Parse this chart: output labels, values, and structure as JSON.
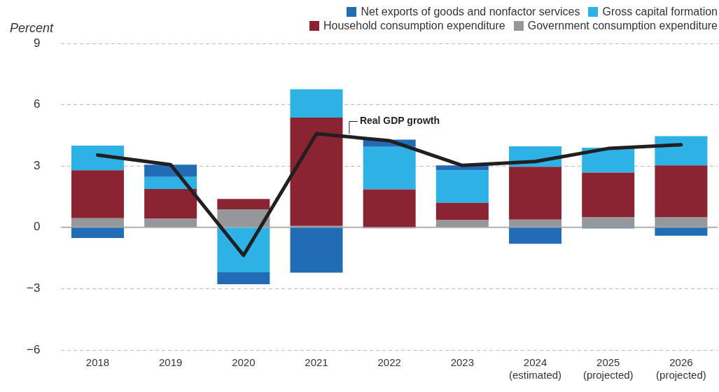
{
  "chart_data": {
    "type": "bar",
    "stacked": true,
    "ylabel": "Percent",
    "categories": [
      "2018",
      "2019",
      "2020",
      "2021",
      "2022",
      "2023",
      "2024\n(estimated)",
      "2025\n(projected)",
      "2026\n(projected)"
    ],
    "series": [
      {
        "name": "Government consumption expenditure",
        "color": "#96979b",
        "values": [
          0.45,
          0.42,
          0.88,
          0.07,
          -0.05,
          0.35,
          0.38,
          0.49,
          0.49
        ]
      },
      {
        "name": "Household consumption expenditure",
        "color": "#8a2432",
        "values": [
          2.34,
          1.46,
          0.51,
          5.3,
          1.86,
          0.85,
          2.58,
          2.19,
          2.54
        ]
      },
      {
        "name": "Gross capital formation",
        "color": "#2eb2e6",
        "values": [
          1.21,
          0.59,
          -2.2,
          1.39,
          2.08,
          1.59,
          1.01,
          1.22,
          1.43
        ]
      },
      {
        "name": "Net exports of goods and nonfactor services",
        "color": "#226cb5",
        "values": [
          -0.52,
          0.6,
          -0.58,
          -2.22,
          0.35,
          0.24,
          -0.8,
          -0.05,
          -0.41
        ]
      },
      {
        "name": "Real GDP growth",
        "type": "line",
        "color": "#231f20",
        "values": [
          3.54,
          3.07,
          -1.37,
          4.58,
          4.24,
          3.03,
          3.22,
          3.86,
          4.04
        ]
      }
    ],
    "ylim": [
      -6,
      9
    ],
    "yticks": [
      {
        "value": -6,
        "label": "−6"
      },
      {
        "value": -3,
        "label": "−3"
      },
      0,
      3,
      6,
      9
    ],
    "grid": "y",
    "legend": "top right",
    "marker": "none"
  }
}
